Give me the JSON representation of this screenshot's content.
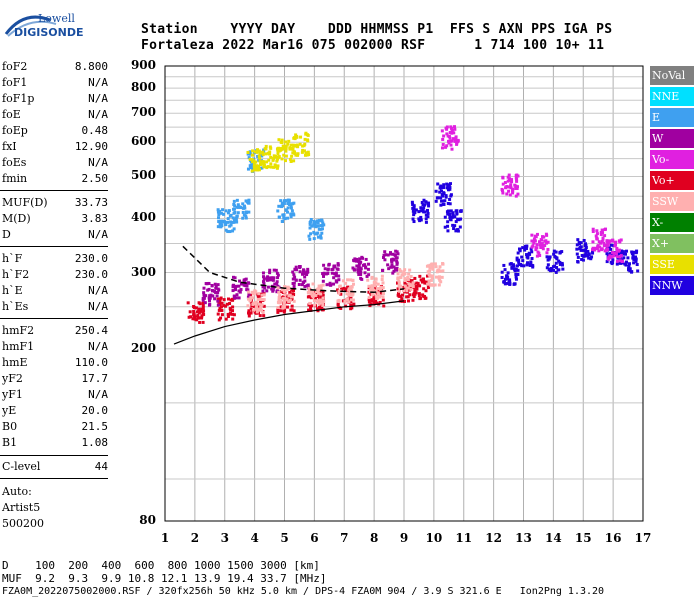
{
  "logo": {
    "line1": "Lowell",
    "line2": "DIGISONDE"
  },
  "header": {
    "line1": "Station    YYYY DAY    DDD HHMMSS P1  FFS S AXN PPS IGA PS",
    "line2": "Fortaleza 2022 Mar16 075 002000 RSF      1 714 100 10+ 11"
  },
  "params": [
    {
      "k": "foF2",
      "v": "8.800"
    },
    {
      "k": "foF1",
      "v": "N/A"
    },
    {
      "k": "foF1p",
      "v": "N/A"
    },
    {
      "k": "foE",
      "v": "N/A"
    },
    {
      "k": "foEp",
      "v": "0.48"
    },
    {
      "k": "fxI",
      "v": "12.90"
    },
    {
      "k": "foEs",
      "v": "N/A"
    },
    {
      "k": "fmin",
      "v": "2.50"
    },
    {
      "k": "MUF(D)",
      "v": "33.73"
    },
    {
      "k": "M(D)",
      "v": "3.83"
    },
    {
      "k": "D",
      "v": "N/A"
    },
    {
      "k": "h`F",
      "v": "230.0"
    },
    {
      "k": "h`F2",
      "v": "230.0"
    },
    {
      "k": "h`E",
      "v": "N/A"
    },
    {
      "k": "h`Es",
      "v": "N/A"
    },
    {
      "k": "hmF2",
      "v": "250.4"
    },
    {
      "k": "hmF1",
      "v": "N/A"
    },
    {
      "k": "hmE",
      "v": "110.0"
    },
    {
      "k": "yF2",
      "v": "17.7"
    },
    {
      "k": "yF1",
      "v": "N/A"
    },
    {
      "k": "yE",
      "v": "20.0"
    },
    {
      "k": "B0",
      "v": "21.5"
    },
    {
      "k": "B1",
      "v": "1.08"
    },
    {
      "k": "C-level",
      "v": "44"
    }
  ],
  "auto": {
    "l1": "Auto:",
    "l2": "Artist5",
    "l3": "500200"
  },
  "bottom": {
    "d_row": "D    100  200  400  600  800 1000 1500 3000 [km]",
    "muf_row": "MUF  9.2  9.3  9.9 10.8 12.1 13.9 19.4 33.7 [MHz]",
    "file_row": "FZA0M_2022075002000.RSF / 320fx256h 50 kHz 5.0 km / DPS-4 FZA0M 904 / 3.9 S 321.6 E   Ion2Png 1.3.20"
  },
  "legend": [
    {
      "label": "NoVal",
      "color": "#808080"
    },
    {
      "label": "NNE",
      "color": "#00e0ff"
    },
    {
      "label": "E",
      "color": "#3fa0f0"
    },
    {
      "label": "W",
      "color": "#a000a0"
    },
    {
      "label": "Vo-",
      "color": "#e020e0"
    },
    {
      "label": "Vo+",
      "color": "#e00020"
    },
    {
      "label": "SSW",
      "color": "#ffb0b0"
    },
    {
      "label": "X-",
      "color": "#008000"
    },
    {
      "label": "X+",
      "color": "#80c060"
    },
    {
      "label": "SSE",
      "color": "#e8e000"
    },
    {
      "label": "NNW",
      "color": "#2000e0"
    }
  ],
  "chart_data": {
    "type": "scatter",
    "title": "",
    "xlabel": "",
    "ylabel": "",
    "xlim": [
      1,
      17
    ],
    "ylim": [
      80,
      900
    ],
    "x_ticks": [
      "1",
      "2",
      "3",
      "4",
      "5",
      "6",
      "7",
      "8",
      "9",
      "10",
      "11",
      "12",
      "13",
      "14",
      "15",
      "16",
      "17"
    ],
    "y_ticks": [
      "80",
      "200",
      "300",
      "400",
      "500",
      "600",
      "700",
      "800",
      "900"
    ],
    "y_scale": "log",
    "grid": true,
    "series": [
      {
        "name": "Vo+",
        "color": "#e00020",
        "points": [
          [
            2,
            245
          ],
          [
            3,
            250
          ],
          [
            4,
            255
          ],
          [
            5,
            260
          ],
          [
            6,
            262
          ],
          [
            7,
            265
          ],
          [
            8,
            268
          ],
          [
            9,
            275
          ],
          [
            9.5,
            280
          ]
        ]
      },
      {
        "name": "W",
        "color": "#a000a0",
        "points": [
          [
            2.5,
            270
          ],
          [
            3.5,
            280
          ],
          [
            4.5,
            290
          ],
          [
            5.5,
            295
          ],
          [
            6.5,
            300
          ],
          [
            7.5,
            310
          ],
          [
            8.5,
            320
          ]
        ]
      },
      {
        "name": "E",
        "color": "#3fa0f0",
        "points": [
          [
            3,
            400
          ],
          [
            3.5,
            420
          ],
          [
            4,
            550
          ],
          [
            5,
            420
          ],
          [
            6,
            380
          ]
        ]
      },
      {
        "name": "NNW",
        "color": "#2000e0",
        "points": [
          [
            9.5,
            420
          ],
          [
            10.3,
            460
          ],
          [
            10.6,
            400
          ],
          [
            12.5,
            300
          ],
          [
            13,
            330
          ],
          [
            14,
            320
          ],
          [
            15,
            340
          ],
          [
            16,
            330
          ],
          [
            16.5,
            320
          ]
        ]
      },
      {
        "name": "SSW",
        "color": "#ffb0b0",
        "points": [
          [
            4,
            260
          ],
          [
            5,
            265
          ],
          [
            6,
            270
          ],
          [
            7,
            275
          ],
          [
            8,
            280
          ],
          [
            9,
            290
          ],
          [
            10,
            300
          ]
        ]
      },
      {
        "name": "SSE",
        "color": "#e8e000",
        "points": [
          [
            4,
            550
          ],
          [
            4.5,
            560
          ],
          [
            5,
            580
          ],
          [
            5.5,
            600
          ]
        ]
      },
      {
        "name": "Vo-",
        "color": "#e020e0",
        "points": [
          [
            10.5,
            620
          ],
          [
            12.5,
            480
          ],
          [
            13.5,
            350
          ],
          [
            15.5,
            360
          ],
          [
            16,
            340
          ]
        ]
      }
    ],
    "o_trace": [
      [
        1.6,
        345
      ],
      [
        2.5,
        300
      ],
      [
        3.5,
        285
      ],
      [
        5,
        276
      ],
      [
        6.5,
        272
      ],
      [
        8,
        270
      ],
      [
        9,
        275
      ]
    ],
    "lower_curve": [
      [
        1.3,
        205
      ],
      [
        2,
        214
      ],
      [
        3,
        225
      ],
      [
        4,
        233
      ],
      [
        5,
        240
      ],
      [
        6,
        245
      ],
      [
        7,
        250
      ],
      [
        8,
        253
      ],
      [
        9,
        258
      ]
    ]
  }
}
